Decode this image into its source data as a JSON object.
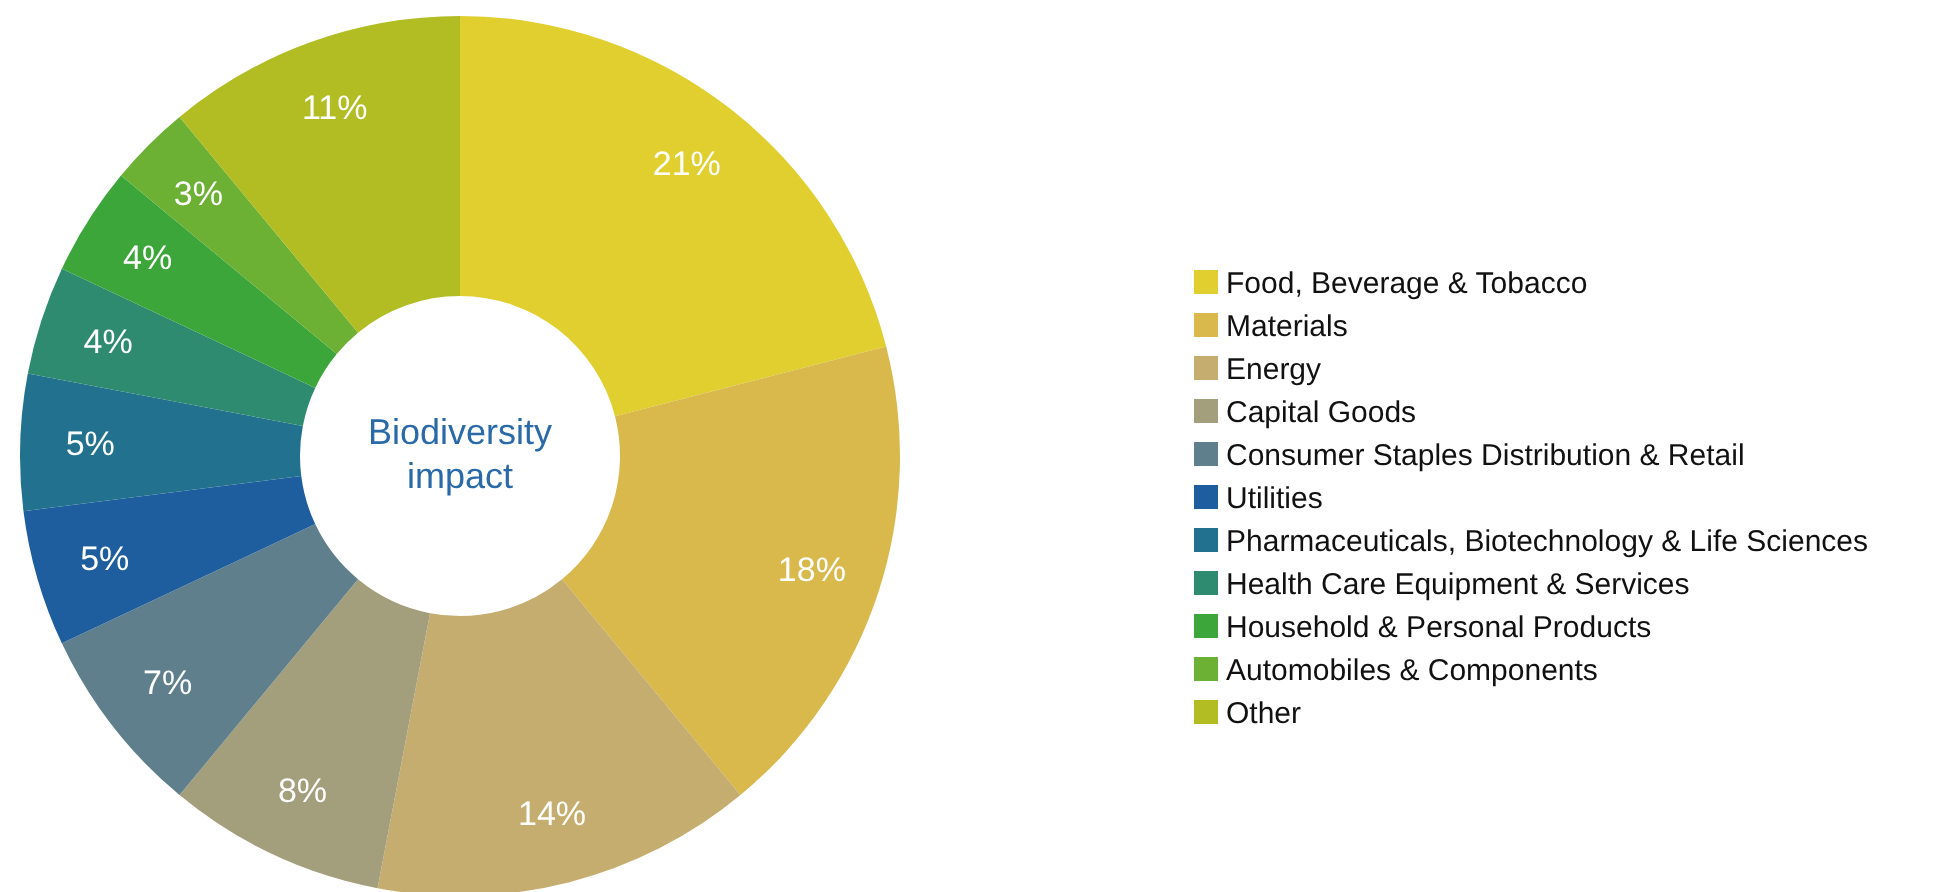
{
  "chart_data": {
    "type": "donut",
    "title": "Biodiversity impact",
    "categories": [
      "Food, Beverage & Tobacco",
      "Materials",
      "Energy",
      "Capital Goods",
      "Consumer Staples Distribution & Retail",
      "Utilities",
      "Pharmaceuticals, Biotechnology & Life Sciences",
      "Health Care Equipment & Services",
      "Household & Personal Products",
      "Automobiles & Components",
      "Other"
    ],
    "values": [
      21,
      18,
      14,
      8,
      7,
      5,
      5,
      4,
      4,
      3,
      11
    ],
    "value_labels": [
      "21%",
      "18%",
      "14%",
      "8%",
      "7%",
      "5%",
      "5%",
      "4%",
      "4%",
      "3%",
      "11%"
    ],
    "colors": [
      "#e0cf2e",
      "#d9b84c",
      "#c5ad6f",
      "#a39e7b",
      "#5e7f8b",
      "#1f5e9e",
      "#21718f",
      "#2e8b70",
      "#3ca63a",
      "#6cb034",
      "#b1bd22"
    ],
    "legend": "right"
  }
}
